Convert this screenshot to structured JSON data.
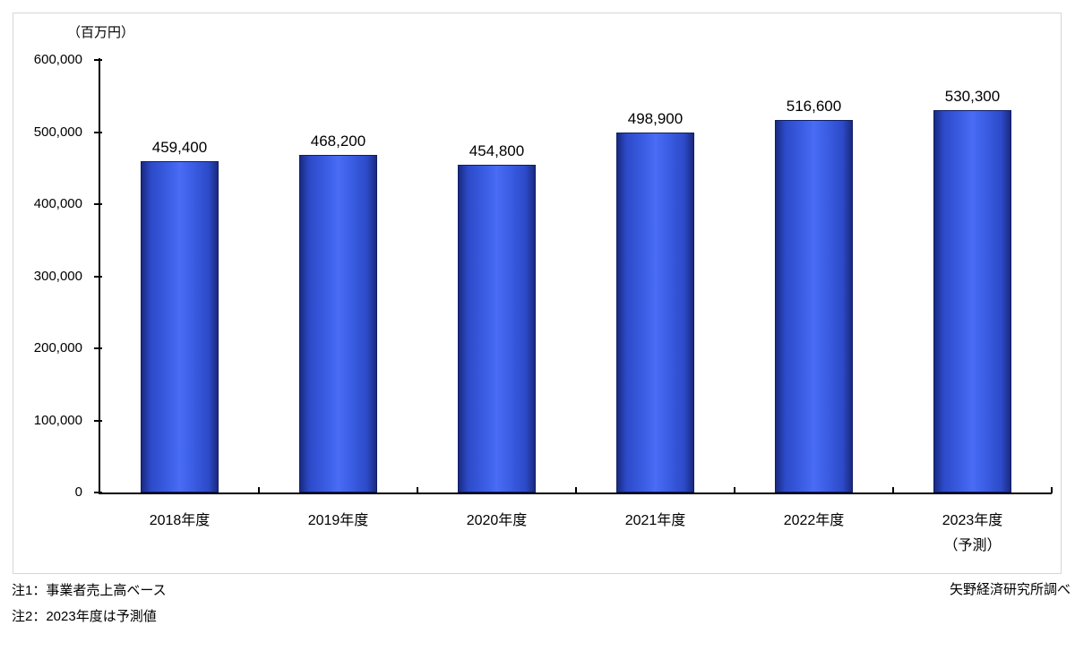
{
  "chart_data": {
    "type": "bar",
    "unit_label": "（百万円）",
    "categories": [
      {
        "label": "2018年度",
        "sublabel": ""
      },
      {
        "label": "2019年度",
        "sublabel": ""
      },
      {
        "label": "2020年度",
        "sublabel": ""
      },
      {
        "label": "2021年度",
        "sublabel": ""
      },
      {
        "label": "2022年度",
        "sublabel": ""
      },
      {
        "label": "2023年度",
        "sublabel": "（予測）"
      }
    ],
    "values": [
      459400,
      468200,
      454800,
      498900,
      516600,
      530300
    ],
    "value_labels": [
      "459,400",
      "468,200",
      "454,800",
      "498,900",
      "516,600",
      "530,300"
    ],
    "y_axis": {
      "min": 0,
      "max": 600000,
      "step": 100000,
      "tick_labels_top_to_bottom": [
        "600,000",
        "500,000",
        "400,000",
        "300,000",
        "200,000",
        "100,000",
        "0"
      ]
    },
    "grid": "off",
    "legend": "none",
    "xlabel": "",
    "ylabel": "（百万円）"
  },
  "notes": {
    "line1": "注1：事業者売上高ベース",
    "line2": "注2：2023年度は予測値"
  },
  "source": "矢野経済研究所調べ",
  "colors": {
    "bar_edge": "#1a2a80",
    "bar_mid": "#2c4ac8",
    "bar_main": "#3f62ea",
    "bar_highlight": "#4a6cf4",
    "bar_border": "#0f1d66",
    "axis": "#000000",
    "frame_border": "#d6d6d6",
    "text": "#000000",
    "background": "#ffffff"
  }
}
